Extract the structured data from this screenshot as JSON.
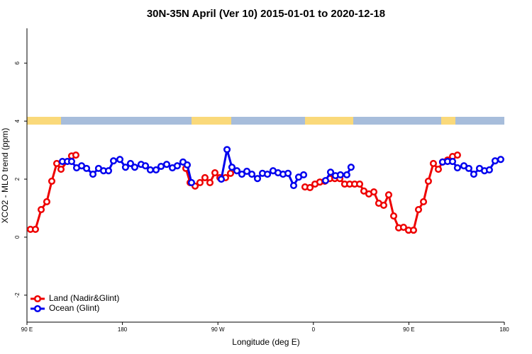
{
  "chart_data": {
    "type": "line",
    "title": "30N-35N April (Ver 10)   2015-01-01 to 2020-12-18",
    "x_label": "Longitude (deg E)",
    "y_label": "XCO2 - MLO trend (ppm)",
    "xlim": [
      90,
      540
    ],
    "ylim": [
      -2.93,
      7.2
    ],
    "xticks": [
      {
        "value": 90,
        "label": "90 E"
      },
      {
        "value": 180,
        "label": "180"
      },
      {
        "value": 270,
        "label": "90 W"
      },
      {
        "value": 360,
        "label": "0"
      },
      {
        "value": 450,
        "label": "90 E"
      },
      {
        "value": 540,
        "label": "180"
      }
    ],
    "yticks": [
      -2,
      0,
      2,
      4,
      6
    ],
    "legend": "bottom-left",
    "series": [
      {
        "name": "Land (Nadir&Glint)",
        "color": "#ee0000",
        "x": [
          93.3,
          98.0,
          103.4,
          108.7,
          113.4,
          118.1,
          122.1,
          132.1,
          136.1,
          null,
          239.8,
          243.8,
          248.5,
          253.1,
          257.8,
          262.5,
          267.2,
          271.9,
          277.2,
          281.9,
          null,
          352.1,
          356.8,
          361.5,
          366.1,
          370.8,
          375.5,
          380.2,
          384.9,
          389.5,
          394.2,
          398.9,
          403.6,
          407.6,
          412.3,
          417.0,
          421.6,
          426.3,
          431.0,
          435.7,
          440.4,
          445.0,
          449.7,
          454.4,
          459.1,
          463.8,
          468.4,
          473.1,
          477.8,
          481.8,
          486.5,
          491.2,
          495.8
        ],
        "values": [
          0.27,
          0.27,
          0.95,
          1.22,
          1.93,
          2.54,
          2.34,
          2.8,
          2.83,
          null,
          2.37,
          1.88,
          1.76,
          1.88,
          2.05,
          1.88,
          2.22,
          2.05,
          2.05,
          2.2,
          null,
          1.73,
          1.71,
          1.83,
          1.9,
          1.93,
          2.02,
          2.02,
          2.02,
          1.83,
          1.83,
          1.83,
          1.83,
          1.59,
          1.49,
          1.56,
          1.17,
          1.1,
          1.46,
          0.73,
          0.32,
          0.34,
          0.24,
          0.24,
          0.95,
          1.22,
          1.93,
          2.54,
          2.34,
          2.59,
          2.66,
          2.78,
          2.83
        ]
      },
      {
        "name": "Ocean (Glint)",
        "color": "#0000ee",
        "x": [
          123.4,
          128.1,
          132.1,
          136.8,
          141.5,
          146.2,
          152.2,
          157.5,
          162.2,
          166.9,
          171.6,
          177.6,
          182.9,
          187.6,
          191.6,
          197.6,
          201.7,
          206.3,
          211.7,
          216.4,
          221.7,
          227.1,
          231.7,
          237.1,
          241.1,
          245.1,
          null,
          273.2,
          278.6,
          283.2,
          287.9,
          292.6,
          297.3,
          302.0,
          307.3,
          312.0,
          316.7,
          322.0,
          326.7,
          331.4,
          336.1,
          341.4,
          346.1,
          350.8,
          null,
          371.5,
          376.2,
          380.8,
          385.5,
          391.5,
          395.5,
          null,
          481.8,
          486.5,
          491.2,
          495.8,
          501.9,
          506.5,
          511.2,
          516.6,
          521.3,
          525.9,
          531.3,
          536.6
        ],
        "values": [
          2.61,
          2.61,
          2.61,
          2.39,
          2.46,
          2.37,
          2.17,
          2.37,
          2.29,
          2.29,
          2.63,
          2.68,
          2.41,
          2.54,
          2.41,
          2.51,
          2.46,
          2.32,
          2.32,
          2.44,
          2.51,
          2.39,
          2.46,
          2.59,
          2.49,
          1.88,
          null,
          2.0,
          3.02,
          2.41,
          2.29,
          2.17,
          2.27,
          2.17,
          2.02,
          2.2,
          2.17,
          2.29,
          2.22,
          2.17,
          2.2,
          1.78,
          2.07,
          2.15,
          null,
          1.95,
          2.24,
          2.12,
          2.15,
          2.15,
          2.41,
          null,
          2.59,
          2.61,
          2.61,
          2.39,
          2.46,
          2.37,
          2.17,
          2.37,
          2.29,
          2.32,
          2.63,
          2.68
        ]
      }
    ]
  }
}
